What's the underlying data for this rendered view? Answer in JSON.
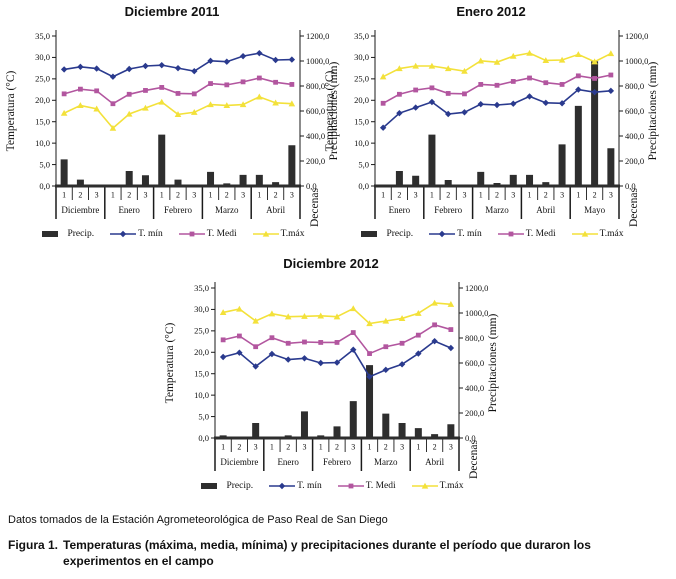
{
  "footer": {
    "source_note": "Datos tomados de la Estación Agrometeorológica de Paso Real de San Diego",
    "figure_label": "Figura 1.",
    "figure_text": "Temperaturas (máxima, media, mínima) y precipitaciones durante el período que duraron los experimentos en el campo"
  },
  "colors": {
    "precip": "#2e2e2e",
    "t_min": "#2a3a8e",
    "t_medi": "#b2569f",
    "t_max": "#f3e13a",
    "axis": "#1a1a1a"
  },
  "chart_data": [
    {
      "type": "bar+line",
      "title": "Diciembre 2011",
      "x_axis_title": "Decenas",
      "legend_precip": "Precip.",
      "legend_position": "bottom",
      "y_left": {
        "title": "Temperatura (°C)",
        "min": 0,
        "max": 35,
        "step": 5
      },
      "y_right": {
        "title": "Precipitaciones (mm)",
        "min": 0,
        "max": 1200,
        "step": 200
      },
      "months": [
        "Diciembre",
        "Enero",
        "Febrero",
        "Marzo",
        "Abril"
      ],
      "decenas": [
        "1",
        "2",
        "3"
      ],
      "precip_mm": [
        213,
        51,
        0,
        0,
        120,
        86,
        411,
        51,
        0,
        113,
        21,
        89,
        89,
        31,
        326
      ],
      "series": [
        {
          "name": "T. mín",
          "color_key": "t_min",
          "marker": "diamond",
          "values": [
            27.2,
            27.8,
            27.4,
            25.5,
            27.3,
            28.0,
            28.2,
            27.5,
            26.8,
            29.2,
            29.0,
            30.3,
            31.0,
            29.4,
            29.5
          ]
        },
        {
          "name": "T. Medi",
          "color_key": "t_medi",
          "marker": "square",
          "values": [
            21.5,
            22.6,
            22.2,
            19.2,
            21.4,
            22.3,
            23.0,
            21.6,
            21.5,
            23.9,
            23.6,
            24.3,
            25.2,
            24.2,
            23.7
          ]
        },
        {
          "name": "T.máx",
          "color_key": "t_max",
          "marker": "triangle",
          "values": [
            17.0,
            18.8,
            18.0,
            13.5,
            16.8,
            18.2,
            19.6,
            16.7,
            17.2,
            19.0,
            18.8,
            19.0,
            20.8,
            19.4,
            19.2
          ]
        }
      ]
    },
    {
      "type": "bar+line",
      "title": "Enero 2012",
      "x_axis_title": "Decenas",
      "legend_precip": "Precip.",
      "legend_position": "bottom",
      "y_left": {
        "title": "Temperatura (°C)",
        "min": 0,
        "max": 35,
        "step": 5
      },
      "y_right": {
        "title": "Precipitaciones (mm)",
        "min": 0,
        "max": 1200,
        "step": 200
      },
      "months": [
        "Enero",
        "Febrero",
        "Marzo",
        "Abril",
        "Mayo"
      ],
      "decenas": [
        "1",
        "2",
        "3"
      ],
      "precip_mm": [
        0,
        120,
        82,
        411,
        48,
        0,
        113,
        24,
        89,
        89,
        31,
        333,
        641,
        998,
        302
      ],
      "series": [
        {
          "name": "T. mín",
          "color_key": "t_min",
          "marker": "diamond",
          "values": [
            13.6,
            17.0,
            18.3,
            19.6,
            16.8,
            17.2,
            19.1,
            18.9,
            19.2,
            20.9,
            19.4,
            19.3,
            22.5,
            21.9,
            22.2
          ]
        },
        {
          "name": "T. Medi",
          "color_key": "t_medi",
          "marker": "square",
          "values": [
            19.3,
            21.4,
            22.4,
            22.9,
            21.6,
            21.5,
            23.7,
            23.5,
            24.4,
            25.2,
            24.1,
            23.7,
            25.7,
            25.1,
            25.9
          ]
        },
        {
          "name": "T.máx",
          "color_key": "t_max",
          "marker": "triangle",
          "values": [
            25.5,
            27.4,
            28.0,
            28.0,
            27.4,
            26.8,
            29.2,
            28.9,
            30.3,
            31.0,
            29.3,
            29.4,
            30.7,
            29.0,
            30.9
          ]
        }
      ]
    },
    {
      "type": "bar+line",
      "title": "Diciembre 2012",
      "x_axis_title": "Decenas",
      "legend_precip": "Precip.",
      "legend_position": "bottom",
      "y_left": {
        "title": "Temperatura (°C)",
        "min": 0,
        "max": 35,
        "step": 5
      },
      "y_right": {
        "title": "Precipitaciones (mm)",
        "min": 0,
        "max": 1200,
        "step": 200
      },
      "months": [
        "Diciembre",
        "Enero",
        "Febrero",
        "Marzo",
        "Abril"
      ],
      "decenas": [
        "1",
        "2",
        "3"
      ],
      "precip_mm": [
        21,
        0,
        120,
        0,
        21,
        213,
        21,
        93,
        295,
        583,
        195,
        120,
        79,
        31,
        110
      ],
      "series": [
        {
          "name": "T. mín",
          "color_key": "t_min",
          "marker": "diamond",
          "values": [
            18.9,
            19.9,
            16.7,
            19.6,
            18.3,
            18.6,
            17.5,
            17.6,
            20.6,
            14.3,
            15.9,
            17.2,
            19.7,
            22.6,
            21.0
          ]
        },
        {
          "name": "T. Medi",
          "color_key": "t_medi",
          "marker": "square",
          "values": [
            22.9,
            23.8,
            21.3,
            23.4,
            22.1,
            22.4,
            22.3,
            22.3,
            24.6,
            19.7,
            21.3,
            22.1,
            24.0,
            26.4,
            25.3
          ]
        },
        {
          "name": "T.máx",
          "color_key": "t_max",
          "marker": "triangle",
          "values": [
            29.3,
            30.1,
            27.3,
            29.0,
            28.3,
            28.4,
            28.5,
            28.3,
            30.2,
            26.7,
            27.3,
            27.9,
            29.1,
            31.5,
            31.2
          ]
        }
      ]
    }
  ]
}
